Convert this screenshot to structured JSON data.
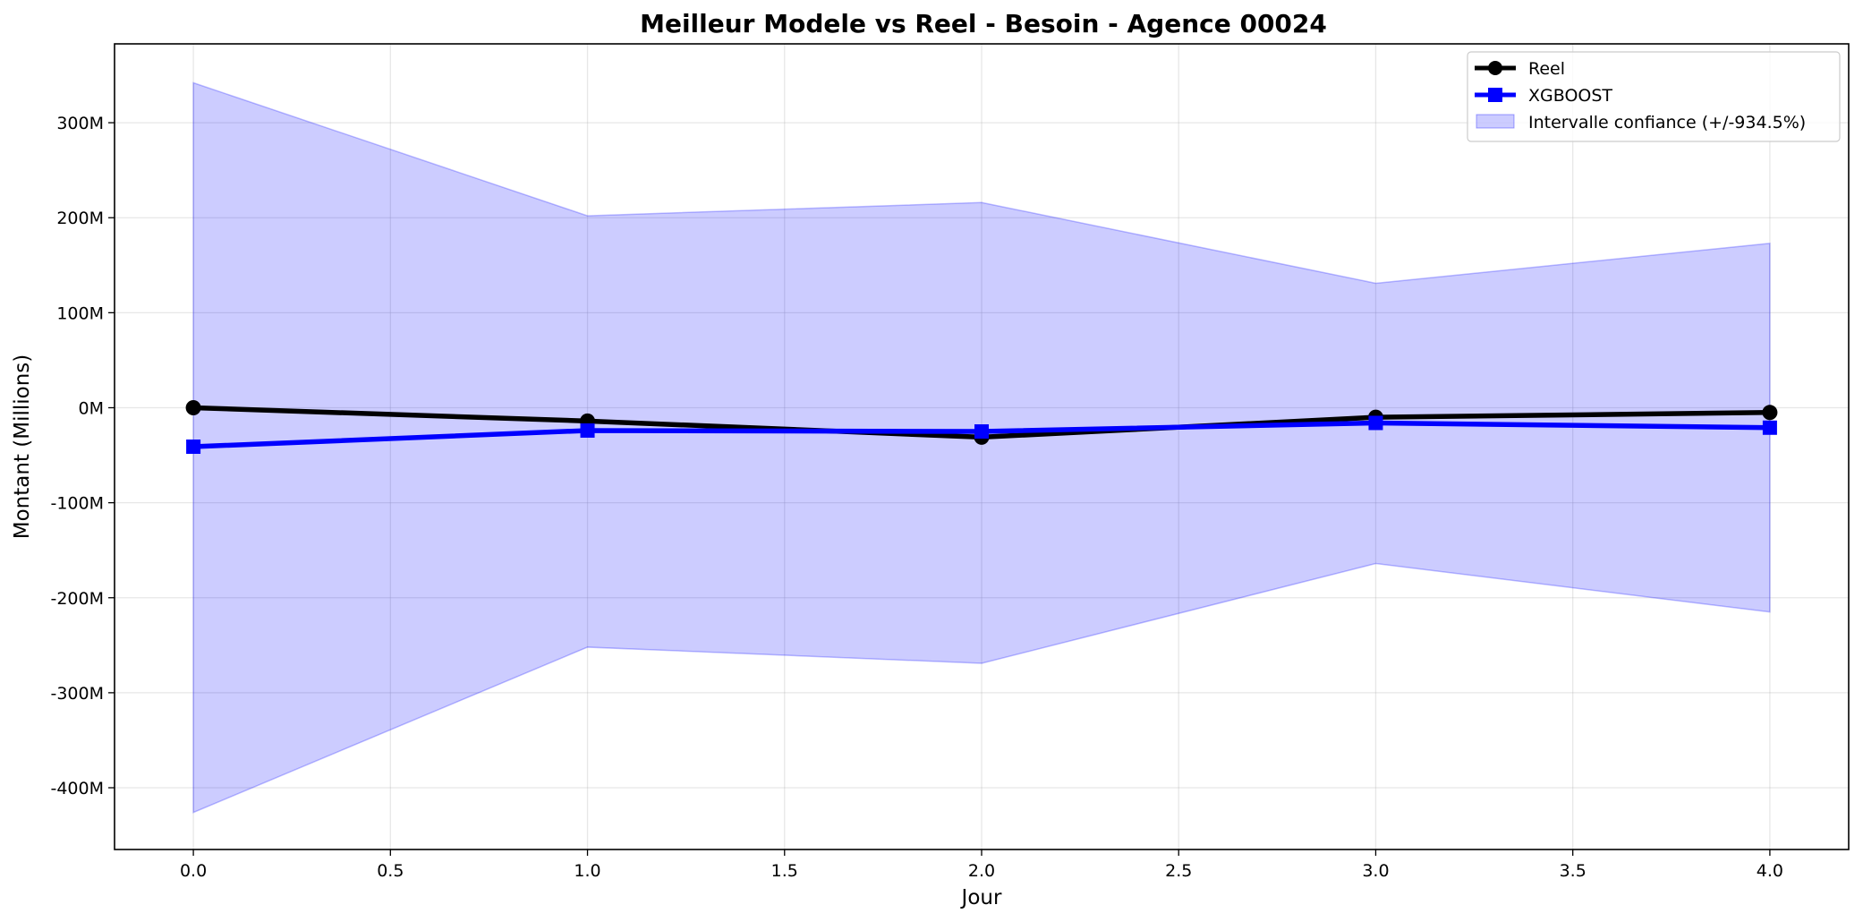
{
  "chart_data": {
    "type": "line",
    "title": "Meilleur Modele vs Reel - Besoin - Agence 00024",
    "xlabel": "Jour",
    "ylabel": "Montant (Millions)",
    "x": [
      0.0,
      1.0,
      2.0,
      3.0,
      4.0
    ],
    "xlim": [
      -0.2,
      4.2
    ],
    "ylim": [
      -465,
      383
    ],
    "xticks": [
      0.0,
      0.5,
      1.0,
      1.5,
      2.0,
      2.5,
      3.0,
      3.5,
      4.0
    ],
    "xtick_labels": [
      "0.0",
      "0.5",
      "1.0",
      "1.5",
      "2.0",
      "2.5",
      "3.0",
      "3.5",
      "4.0"
    ],
    "yticks": [
      -400,
      -300,
      -200,
      -100,
      0,
      100,
      200,
      300
    ],
    "ytick_labels": [
      "-400M",
      "-300M",
      "-200M",
      "-100M",
      "0M",
      "100M",
      "200M",
      "300M"
    ],
    "grid": true,
    "legend_position": "top-right",
    "series": [
      {
        "name": "Reel",
        "values": [
          0,
          -14,
          -31,
          -10,
          -5
        ],
        "color": "#000000",
        "marker": "circle"
      },
      {
        "name": "XGBOOST",
        "values": [
          -41,
          -24,
          -25,
          -16,
          -21
        ],
        "color": "#0000ff",
        "marker": "square"
      }
    ],
    "band": {
      "name": "Intervalle confiance (+/-934.5%)",
      "upper": [
        342,
        202,
        216,
        131,
        173
      ],
      "lower": [
        -426,
        -252,
        -269,
        -164,
        -215
      ],
      "color": "#0000ff"
    }
  }
}
